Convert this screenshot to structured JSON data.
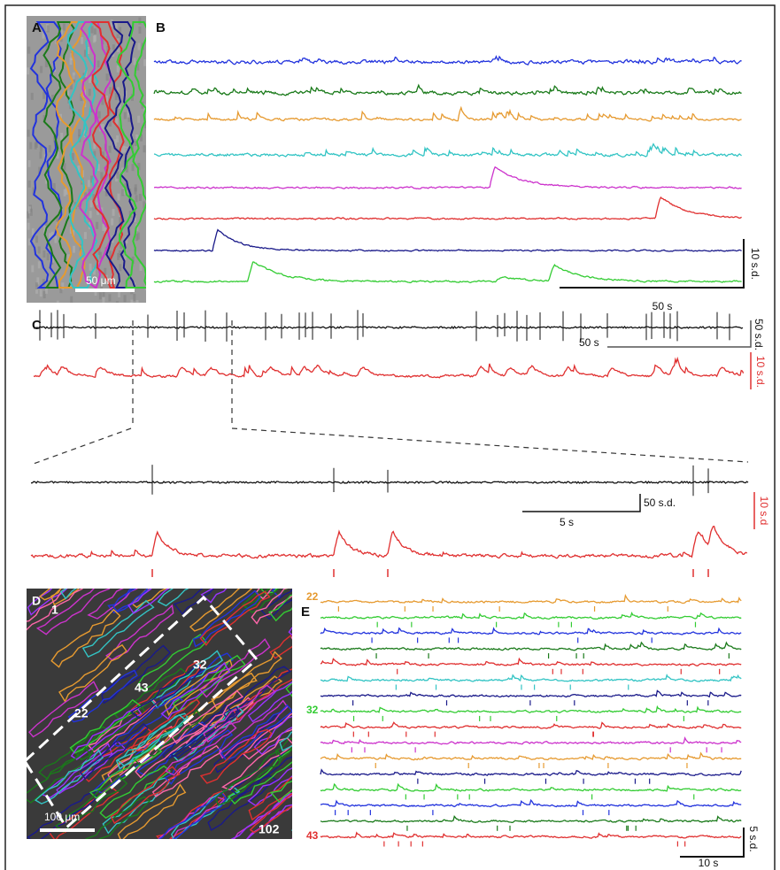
{
  "panels": {
    "A": {
      "label": "A",
      "scale_bar": "50 μm"
    },
    "B": {
      "label": "B",
      "scale_y": "10 s.d.",
      "scale_x": "50 s"
    },
    "C": {
      "label": "C",
      "top_scale_black": "50 s.d.",
      "top_scale_x": "50 s",
      "top_scale_red": "10 s.d.",
      "zoom_scale_black": "50 s.d.",
      "zoom_scale_x": "5 s",
      "zoom_scale_red": "10 s.d"
    },
    "D": {
      "label": "D",
      "cell_labels": [
        "1",
        "22",
        "32",
        "43",
        "102"
      ],
      "scale_bar": "100 μm"
    },
    "E": {
      "label": "E",
      "cell_labels": [
        "22",
        "32",
        "43"
      ],
      "scale_y": "5 s.d.",
      "scale_x": "10 s"
    }
  }
}
